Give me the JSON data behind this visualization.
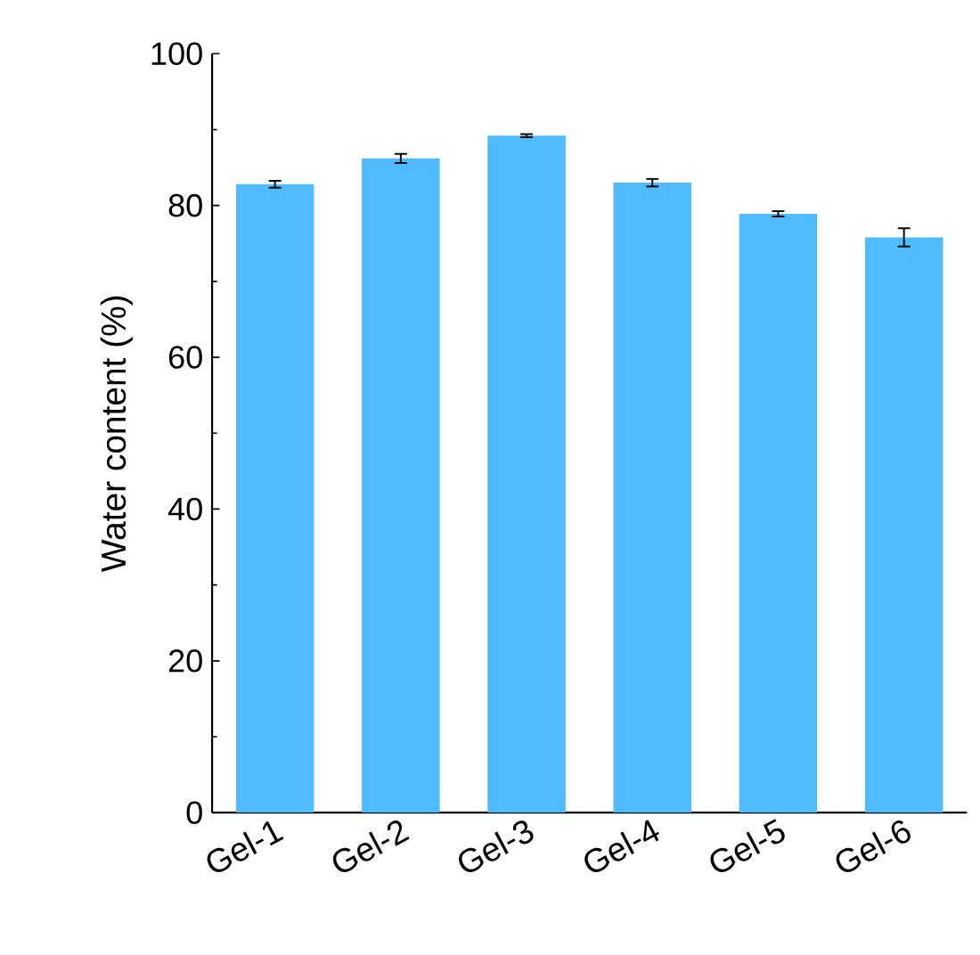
{
  "chart_data": {
    "type": "bar",
    "ylabel": "Water content (%)",
    "categories": [
      "Gel-1",
      "Gel-2",
      "Gel-3",
      "Gel-4",
      "Gel-5",
      "Gel-6"
    ],
    "values": [
      82.8,
      86.2,
      89.2,
      83.0,
      78.9,
      75.8
    ],
    "errors": [
      0.45,
      0.6,
      0.2,
      0.5,
      0.35,
      1.2
    ],
    "color": "#50bcff",
    "ylim": [
      0,
      100
    ],
    "yticks": [
      0,
      20,
      40,
      60,
      80,
      100
    ],
    "grid": false
  }
}
